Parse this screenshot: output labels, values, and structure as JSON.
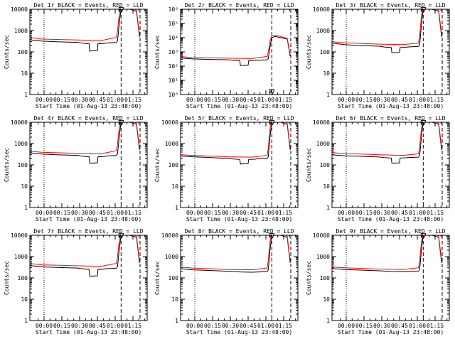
{
  "figure": {
    "background": "#ffffff",
    "colors": {
      "events": "#000000",
      "lld": "#ff0000",
      "axes": "#000000"
    }
  },
  "chart_data": [
    {
      "type": "line",
      "title": "Det 1r BLACK = Events, RED = LLD",
      "xlabel": "Start Time (01-Aug-13 23:48:00)",
      "ylabel": "Counts/sec",
      "xticks": [
        "00:00",
        "00:15",
        "00:30",
        "00:45",
        "01:00",
        "01:15"
      ],
      "xticks_min": [
        12,
        27,
        42,
        57,
        72,
        87
      ],
      "xlim_min": [
        0,
        99
      ],
      "ylim": [
        1,
        10000
      ],
      "log_y": true,
      "yticks": [
        "1",
        "10",
        "100",
        "1000",
        "10000"
      ],
      "vlines": [
        {
          "x_min": 12,
          "style": "dotted"
        },
        {
          "x_min": 77,
          "style": "dashed"
        },
        {
          "x_min": 93,
          "style": "dashed"
        }
      ],
      "series": [
        {
          "color": "events",
          "x": [
            0,
            10,
            22,
            40,
            44,
            50,
            50.5,
            57,
            57.5,
            63,
            63.5,
            73,
            74,
            75.5,
            77,
            80,
            90,
            92.5
          ],
          "y": [
            370,
            320,
            300,
            280,
            260,
            240,
            110,
            115,
            240,
            250,
            260,
            275,
            330,
            2200,
            10500,
            12000,
            8000,
            500
          ]
        },
        {
          "color": "lld",
          "x": [
            0,
            10,
            25,
            40,
            60,
            73,
            74,
            75.5,
            77,
            80,
            90,
            92.5
          ],
          "y": [
            470,
            400,
            380,
            360,
            340,
            480,
            950,
            6000,
            13000,
            15000,
            9000,
            650
          ]
        }
      ],
      "marker": {
        "x_min": 77,
        "y": 9700
      }
    },
    {
      "type": "line",
      "title": "Det 2r BLACK = Events, RED = LLD",
      "xlabel": "Start Time (01-Aug-13 23:48:00)",
      "ylabel": "Counts/sec",
      "xticks": [
        "00:00",
        "00:15",
        "00:30",
        "00:45",
        "01:00",
        "01:15"
      ],
      "xticks_min": [
        12,
        27,
        42,
        57,
        72,
        87
      ],
      "xlim_min": [
        0,
        99
      ],
      "ylim": [
        1,
        1000000
      ],
      "log_y": true,
      "yticks": [
        "1",
        "10",
        "100",
        "1000",
        "10000"
      ],
      "vlines": [
        {
          "x_min": 12,
          "style": "dotted"
        },
        {
          "x_min": 77,
          "style": "dashed"
        },
        {
          "x_min": 93,
          "style": "dashed"
        }
      ],
      "series": [
        {
          "color": "events",
          "x": [
            0,
            10,
            22,
            40,
            44,
            50,
            50.5,
            57,
            57.5,
            63,
            63.5,
            73,
            74,
            75.5,
            77,
            80,
            90,
            92.5
          ],
          "y": [
            370,
            320,
            300,
            280,
            260,
            240,
            110,
            115,
            240,
            250,
            260,
            275,
            330,
            2200,
            10500,
            12000,
            8000,
            500
          ]
        },
        {
          "color": "lld",
          "x": [
            0,
            10,
            25,
            40,
            60,
            73,
            74,
            75.5,
            77,
            80,
            90,
            92.5
          ],
          "y": [
            470,
            400,
            380,
            360,
            340,
            480,
            950,
            6000,
            13000,
            15000,
            9000,
            650
          ]
        }
      ],
      "marker": {
        "x_min": 77,
        "y": 1.6
      }
    },
    {
      "type": "line",
      "title": "Det 3r BLACK = Events, RED = LLD",
      "xlabel": "Start Time (01-Aug-13 23:48:00)",
      "ylabel": "Counts/sec",
      "xticks": [
        "00:00",
        "00:15",
        "00:30",
        "00:45",
        "01:00",
        "01:15"
      ],
      "xticks_min": [
        12,
        27,
        42,
        57,
        72,
        87
      ],
      "xlim_min": [
        0,
        99
      ],
      "ylim": [
        1,
        10000
      ],
      "log_y": true,
      "yticks": [
        "1",
        "10",
        "100",
        "1000",
        "10000"
      ],
      "vlines": [
        {
          "x_min": 12,
          "style": "dotted"
        },
        {
          "x_min": 77,
          "style": "dashed"
        },
        {
          "x_min": 93,
          "style": "dashed"
        }
      ],
      "series": [
        {
          "color": "events",
          "x": [
            0,
            10,
            22,
            40,
            44,
            50,
            50.5,
            57,
            57.5,
            63,
            63.5,
            73,
            74,
            75.5,
            77,
            80,
            90,
            92.5
          ],
          "y": [
            260,
            220,
            200,
            185,
            170,
            160,
            90,
            95,
            160,
            165,
            170,
            180,
            220,
            1800,
            10500,
            12000,
            8000,
            500
          ]
        },
        {
          "color": "lld",
          "x": [
            0,
            10,
            25,
            40,
            60,
            73,
            74,
            75.5,
            77,
            80,
            90,
            92.5
          ],
          "y": [
            300,
            270,
            250,
            230,
            220,
            260,
            600,
            5000,
            13000,
            15000,
            9000,
            650
          ]
        }
      ],
      "marker": {
        "x_min": 77,
        "y": 9700
      }
    },
    {
      "type": "line",
      "title": "Det 4r BLACK = Events, RED = LLD",
      "xlabel": "Start Time (01-Aug-13 23:48:00)",
      "ylabel": "Counts/sec",
      "xticks": [
        "00:00",
        "00:15",
        "00:30",
        "00:45",
        "01:00",
        "01:15"
      ],
      "xticks_min": [
        12,
        27,
        42,
        57,
        72,
        87
      ],
      "xlim_min": [
        0,
        99
      ],
      "ylim": [
        1,
        10000
      ],
      "log_y": true,
      "yticks": [
        "1",
        "10",
        "100",
        "1000",
        "10000"
      ],
      "vlines": [
        {
          "x_min": 12,
          "style": "dotted"
        },
        {
          "x_min": 77,
          "style": "dashed"
        },
        {
          "x_min": 93,
          "style": "dashed"
        }
      ],
      "series": [
        {
          "color": "events",
          "x": [
            0,
            10,
            22,
            40,
            44,
            50,
            50.5,
            57,
            57.5,
            63,
            63.5,
            73,
            74,
            75.5,
            77,
            80,
            90,
            92.5
          ],
          "y": [
            370,
            320,
            300,
            280,
            260,
            240,
            120,
            125,
            240,
            250,
            260,
            275,
            330,
            2200,
            10500,
            12000,
            8000,
            500
          ]
        },
        {
          "color": "lld",
          "x": [
            0,
            10,
            25,
            40,
            60,
            73,
            74,
            75.5,
            77,
            80,
            90,
            92.5
          ],
          "y": [
            440,
            390,
            370,
            350,
            330,
            460,
            900,
            6000,
            13000,
            15000,
            9000,
            650
          ]
        }
      ],
      "marker": {
        "x_min": 77,
        "y": 9700
      }
    },
    {
      "type": "line",
      "title": "Det 5r BLACK = Events, RED = LLD",
      "xlabel": "Start Time (01-Aug-13 23:48:00)",
      "ylabel": "Counts/sec",
      "xticks": [
        "00:00",
        "00:15",
        "00:30",
        "00:45",
        "01:00",
        "01:15"
      ],
      "xticks_min": [
        12,
        27,
        42,
        57,
        72,
        87
      ],
      "xlim_min": [
        0,
        99
      ],
      "ylim": [
        1,
        10000
      ],
      "log_y": true,
      "yticks": [
        "1",
        "10",
        "100",
        "1000",
        "10000"
      ],
      "vlines": [
        {
          "x_min": 12,
          "style": "dotted"
        },
        {
          "x_min": 77,
          "style": "dashed"
        },
        {
          "x_min": 93,
          "style": "dashed"
        }
      ],
      "series": [
        {
          "color": "events",
          "x": [
            0,
            10,
            22,
            40,
            44,
            50,
            50.5,
            57,
            57.5,
            63,
            63.5,
            73,
            74,
            75.5,
            77,
            80,
            90,
            92.5
          ],
          "y": [
            260,
            240,
            225,
            200,
            190,
            180,
            110,
            115,
            180,
            185,
            190,
            200,
            240,
            2000,
            10500,
            12000,
            8000,
            500
          ]
        },
        {
          "color": "lld",
          "x": [
            0,
            10,
            25,
            40,
            60,
            73,
            74,
            75.5,
            77,
            80,
            90,
            92.5
          ],
          "y": [
            300,
            280,
            260,
            240,
            230,
            280,
            600,
            5000,
            13000,
            15000,
            9000,
            650
          ]
        }
      ],
      "marker": {
        "x_min": 77,
        "y": 9700
      }
    },
    {
      "type": "line",
      "title": "Det 6r BLACK = Events, RED = LLD",
      "xlabel": "Start Time (01-Aug-13 23:48:00)",
      "ylabel": "Counts/sec",
      "xticks": [
        "00:00",
        "00:15",
        "00:30",
        "00:45",
        "01:00",
        "01:15"
      ],
      "xticks_min": [
        12,
        27,
        42,
        57,
        72,
        87
      ],
      "xlim_min": [
        0,
        99
      ],
      "ylim": [
        1,
        10000
      ],
      "log_y": true,
      "yticks": [
        "1",
        "10",
        "100",
        "1000",
        "10000"
      ],
      "vlines": [
        {
          "x_min": 12,
          "style": "dotted"
        },
        {
          "x_min": 77,
          "style": "dashed"
        },
        {
          "x_min": 93,
          "style": "dashed"
        }
      ],
      "series": [
        {
          "color": "events",
          "x": [
            0,
            10,
            22,
            40,
            44,
            50,
            50.5,
            57,
            57.5,
            63,
            63.5,
            73,
            74,
            75.5,
            77,
            80,
            90,
            92.5
          ],
          "y": [
            300,
            270,
            255,
            235,
            220,
            210,
            120,
            125,
            210,
            215,
            220,
            230,
            280,
            2000,
            10500,
            12000,
            8000,
            500
          ]
        },
        {
          "color": "lld",
          "x": [
            0,
            10,
            25,
            40,
            60,
            73,
            74,
            75.5,
            77,
            80,
            90,
            92.5
          ],
          "y": [
            380,
            340,
            320,
            300,
            280,
            330,
            700,
            5500,
            13000,
            15000,
            9000,
            650
          ]
        }
      ],
      "marker": {
        "x_min": 77,
        "y": 9700
      }
    },
    {
      "type": "line",
      "title": "Det 7r BLACK = Events, RED = LLD",
      "xlabel": "Start Time (01-Aug-13 23:48:00)",
      "ylabel": "Counts/sec",
      "xticks": [
        "00:00",
        "00:15",
        "00:30",
        "00:45",
        "01:00",
        "01:15"
      ],
      "xticks_min": [
        12,
        27,
        42,
        57,
        72,
        87
      ],
      "xlim_min": [
        0,
        99
      ],
      "ylim": [
        1,
        10000
      ],
      "log_y": true,
      "yticks": [
        "1",
        "10",
        "100",
        "1000",
        "10000"
      ],
      "vlines": [
        {
          "x_min": 12,
          "style": "dotted"
        },
        {
          "x_min": 77,
          "style": "dashed"
        },
        {
          "x_min": 93,
          "style": "dashed"
        }
      ],
      "series": [
        {
          "color": "events",
          "x": [
            0,
            10,
            22,
            40,
            44,
            50,
            50.5,
            57,
            57.5,
            63,
            63.5,
            73,
            74,
            75.5,
            77,
            80,
            90,
            92.5
          ],
          "y": [
            380,
            330,
            310,
            290,
            270,
            250,
            120,
            125,
            250,
            260,
            270,
            285,
            340,
            2200,
            10500,
            12000,
            8000,
            500
          ]
        },
        {
          "color": "lld",
          "x": [
            0,
            10,
            25,
            40,
            60,
            73,
            74,
            75.5,
            77,
            80,
            90,
            92.5
          ],
          "y": [
            470,
            410,
            390,
            370,
            350,
            480,
            950,
            6000,
            13000,
            15000,
            9000,
            650
          ]
        }
      ],
      "marker": {
        "x_min": 77,
        "y": 9700
      }
    },
    {
      "type": "line",
      "title": "Det 8r BLACK = Events, RED = LLD",
      "xlabel": "Start Time (01-Aug-13 23:48:00)",
      "ylabel": "Counts/sec",
      "xticks": [
        "00:00",
        "00:15",
        "00:30",
        "00:45",
        "01:00",
        "01:15"
      ],
      "xticks_min": [
        12,
        27,
        42,
        57,
        72,
        87
      ],
      "xlim_min": [
        0,
        99
      ],
      "ylim": [
        1,
        10000
      ],
      "log_y": true,
      "yticks": [
        "1",
        "10",
        "100",
        "1000",
        "10000"
      ],
      "vlines": [
        {
          "x_min": 12,
          "style": "dotted"
        },
        {
          "x_min": 77,
          "style": "dashed"
        },
        {
          "x_min": 93,
          "style": "dashed"
        }
      ],
      "series": [
        {
          "color": "events",
          "x": [
            0,
            10,
            22,
            40,
            50,
            60,
            73,
            74,
            75.5,
            77,
            80,
            90,
            92.5
          ],
          "y": [
            270,
            240,
            225,
            205,
            190,
            185,
            195,
            240,
            2000,
            10500,
            12000,
            8000,
            500
          ]
        },
        {
          "color": "lld",
          "x": [
            0,
            10,
            25,
            40,
            60,
            73,
            74,
            75.5,
            77,
            80,
            90,
            92.5
          ],
          "y": [
            320,
            290,
            270,
            250,
            240,
            290,
            650,
            5000,
            13000,
            15000,
            9000,
            650
          ]
        }
      ],
      "marker": {
        "x_min": 77,
        "y": 9700
      }
    },
    {
      "type": "line",
      "title": "Det 9r BLACK = Events, RED = LLD",
      "xlabel": "Start Time (01-Aug-13 23:48:00)",
      "ylabel": "Counts/sec",
      "xticks": [
        "00:00",
        "00:15",
        "00:30",
        "00:45",
        "01:00",
        "01:15"
      ],
      "xticks_min": [
        12,
        27,
        42,
        57,
        72,
        87
      ],
      "xlim_min": [
        0,
        99
      ],
      "ylim": [
        1,
        10000
      ],
      "log_y": true,
      "yticks": [
        "1",
        "10",
        "100",
        "1000",
        "10000"
      ],
      "vlines": [
        {
          "x_min": 12,
          "style": "dotted"
        },
        {
          "x_min": 77,
          "style": "dashed"
        },
        {
          "x_min": 93,
          "style": "dashed"
        }
      ],
      "series": [
        {
          "color": "events",
          "x": [
            0,
            10,
            22,
            40,
            50,
            60,
            73,
            74,
            75.5,
            77,
            80,
            90,
            92.5
          ],
          "y": [
            280,
            250,
            235,
            215,
            200,
            195,
            205,
            250,
            2000,
            10500,
            12000,
            8000,
            500
          ]
        },
        {
          "color": "lld",
          "x": [
            0,
            10,
            25,
            40,
            60,
            73,
            74,
            75.5,
            77,
            80,
            90,
            92.5
          ],
          "y": [
            330,
            300,
            280,
            260,
            250,
            300,
            650,
            5000,
            13000,
            15000,
            9000,
            650
          ]
        }
      ],
      "marker": {
        "x_min": 77,
        "y": 9700
      }
    }
  ]
}
